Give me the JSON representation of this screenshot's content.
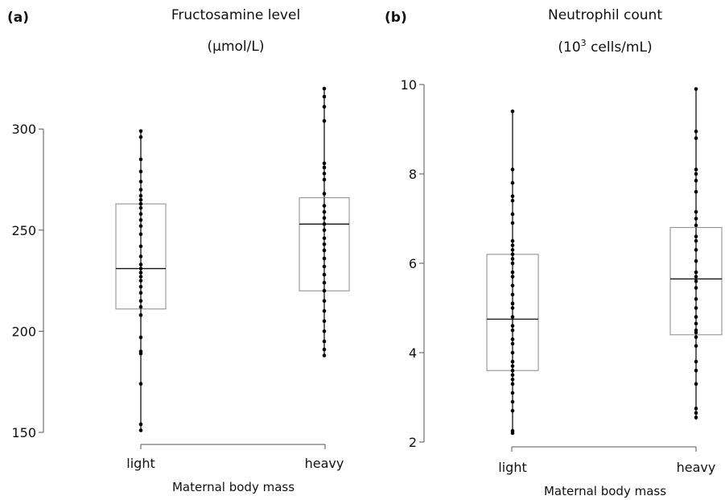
{
  "chart_data": [
    {
      "type": "box",
      "panel": "(a)",
      "title": "Fructosamine level",
      "subtitle": "(µmol/L)",
      "xlabel": "Maternal body mass",
      "ylabel": "",
      "ylim": [
        150,
        320
      ],
      "yticks": [
        150,
        200,
        250,
        300
      ],
      "categories": [
        "light",
        "heavy"
      ],
      "boxes": [
        {
          "q1": 211,
          "median": 231,
          "q3": 263,
          "min": 151,
          "max": 299
        },
        {
          "q1": 220,
          "median": 253,
          "q3": 266,
          "min": 188,
          "max": 320
        }
      ],
      "points": [
        [
          151,
          154,
          174,
          189,
          190,
          197,
          208,
          212,
          215,
          219,
          222,
          225,
          227,
          229,
          231,
          233,
          237,
          242,
          248,
          252,
          255,
          258,
          261,
          263,
          265,
          267,
          270,
          274,
          279,
          285,
          296,
          299
        ],
        [
          188,
          191,
          195,
          200,
          205,
          210,
          215,
          220,
          224,
          228,
          232,
          236,
          240,
          243,
          246,
          250,
          253,
          256,
          259,
          262,
          268,
          275,
          278,
          281,
          283,
          304,
          311,
          316,
          320
        ]
      ]
    },
    {
      "type": "box",
      "panel": "(b)",
      "title": "Neutrophil count",
      "subtitle_main": "(10",
      "subtitle_sup": "3",
      "subtitle_rest": " cells/mL)",
      "xlabel": "Maternal body mass",
      "ylabel": "",
      "ylim": [
        2,
        10
      ],
      "yticks": [
        2,
        4,
        6,
        8,
        10
      ],
      "categories": [
        "light",
        "heavy"
      ],
      "boxes": [
        {
          "q1": 3.6,
          "median": 4.75,
          "q3": 6.2,
          "min": 2.2,
          "max": 9.4
        },
        {
          "q1": 4.4,
          "median": 5.65,
          "q3": 6.8,
          "min": 2.5,
          "max": 9.9
        }
      ],
      "points": [
        [
          2.2,
          2.25,
          2.7,
          2.9,
          3.1,
          3.3,
          3.4,
          3.5,
          3.6,
          3.7,
          3.8,
          4.0,
          4.2,
          4.3,
          4.5,
          4.6,
          4.8,
          5.0,
          5.1,
          5.3,
          5.5,
          5.7,
          5.8,
          6.0,
          6.1,
          6.2,
          6.3,
          6.4,
          6.5,
          6.9,
          7.1,
          7.4,
          7.5,
          7.8,
          8.1,
          9.4
        ],
        [
          2.55,
          2.65,
          2.75,
          3.3,
          3.6,
          3.8,
          4.15,
          4.35,
          4.45,
          4.5,
          4.65,
          4.8,
          5.0,
          5.2,
          5.45,
          5.6,
          5.7,
          5.8,
          6.05,
          6.3,
          6.5,
          6.6,
          6.85,
          7.0,
          7.15,
          7.6,
          7.85,
          8.0,
          8.1,
          8.8,
          8.95,
          9.9
        ]
      ]
    }
  ]
}
